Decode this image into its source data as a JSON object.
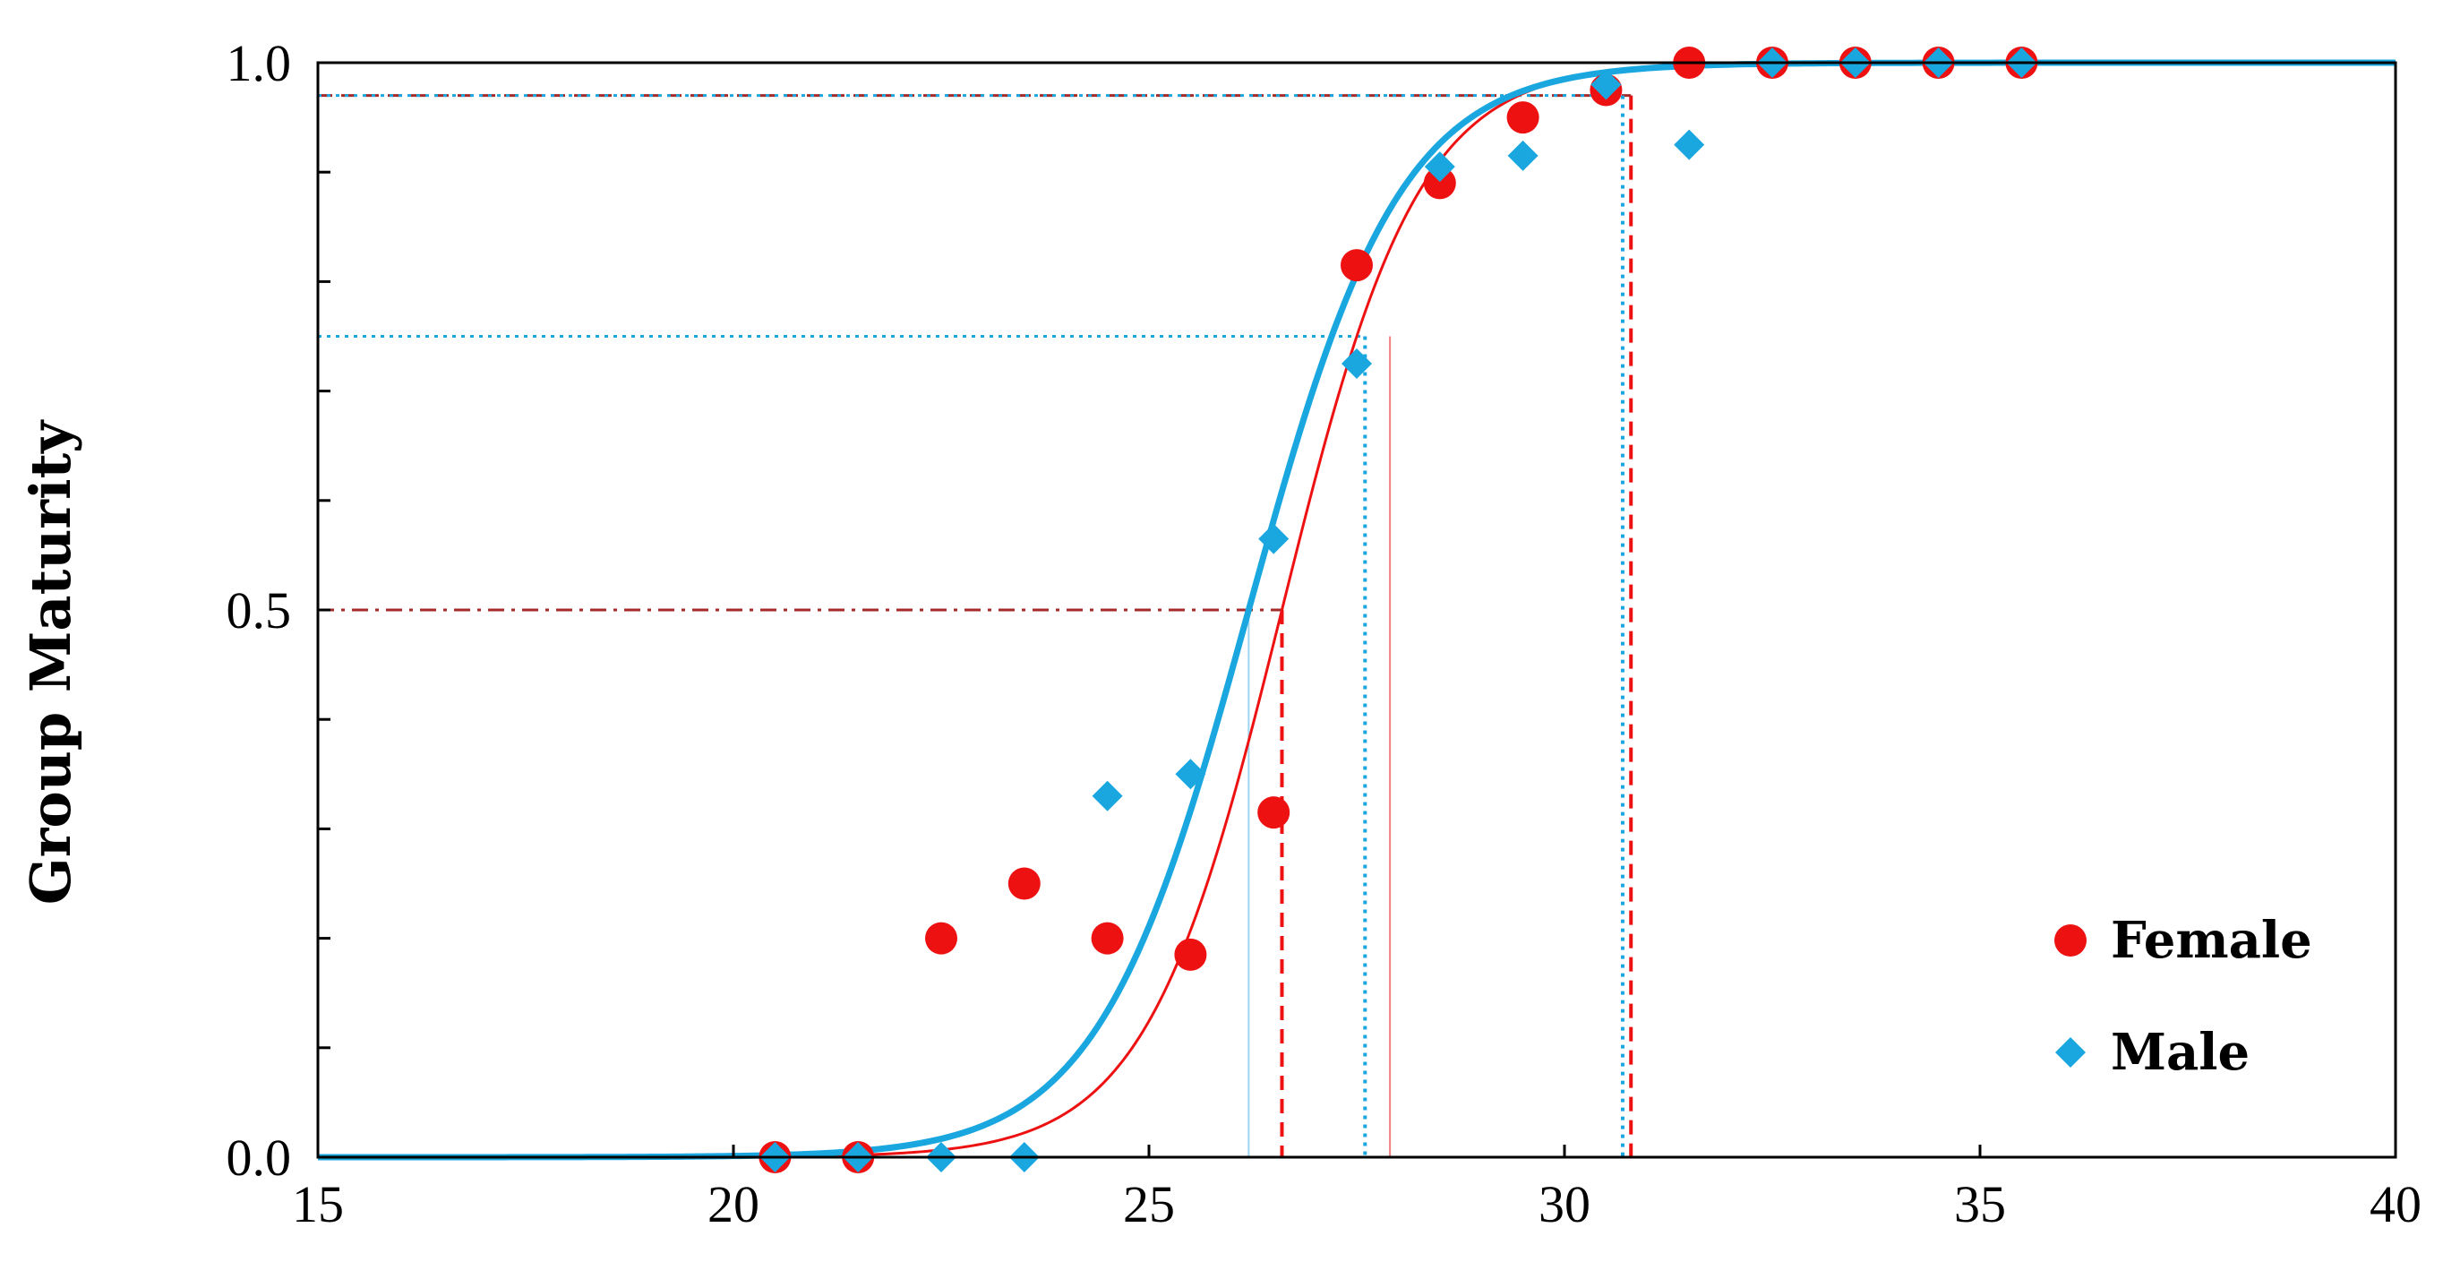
{
  "colors": {
    "female": "#ee1111",
    "female_dark": "#a52a2a",
    "male": "#1aa7e0",
    "male_light": "#9fd4f0",
    "axis": "#000000"
  },
  "chart_data": {
    "type": "scatter",
    "title": "",
    "xlabel": "",
    "ylabel": "Group Maturity",
    "xlim": [
      15,
      40
    ],
    "ylim": [
      0,
      1
    ],
    "x_ticks": [
      "15",
      "20",
      "25",
      "30",
      "35",
      "40"
    ],
    "y_ticks": [
      "0.0",
      "0.5",
      "1.0"
    ],
    "x_tick_values": [
      15,
      20,
      25,
      30,
      35,
      40
    ],
    "y_tick_values": [
      0,
      0.5,
      1
    ],
    "y_minor_ticks": [
      0.1,
      0.2,
      0.3,
      0.4,
      0.6,
      0.7,
      0.8,
      0.9
    ],
    "grid": false,
    "legend_position": "bottom-right",
    "series": [
      {
        "name": "Female",
        "marker": "circle",
        "color": "#ee1111",
        "points": [
          [
            20.5,
            0.0
          ],
          [
            21.5,
            0.0
          ],
          [
            22.5,
            0.2
          ],
          [
            23.5,
            0.25
          ],
          [
            24.5,
            0.2
          ],
          [
            25.5,
            0.185
          ],
          [
            26.5,
            0.315
          ],
          [
            27.5,
            0.815
          ],
          [
            28.5,
            0.89
          ],
          [
            29.5,
            0.95
          ],
          [
            30.5,
            0.975
          ],
          [
            31.5,
            1.0
          ],
          [
            32.5,
            1.0
          ],
          [
            33.5,
            1.0
          ],
          [
            34.5,
            1.0
          ],
          [
            35.5,
            1.0
          ]
        ],
        "fit": {
          "x50": 26.6,
          "k": 1.22,
          "x_start": 20.5,
          "x_end": 40
        }
      },
      {
        "name": "Male",
        "marker": "diamond",
        "color": "#1aa7e0",
        "points": [
          [
            20.5,
            0.0
          ],
          [
            21.5,
            0.0
          ],
          [
            22.5,
            0.0
          ],
          [
            23.5,
            0.0
          ],
          [
            24.5,
            0.33
          ],
          [
            25.5,
            0.35
          ],
          [
            26.5,
            0.565
          ],
          [
            27.5,
            0.725
          ],
          [
            28.5,
            0.905
          ],
          [
            29.5,
            0.915
          ],
          [
            30.5,
            0.98
          ],
          [
            31.5,
            0.925
          ],
          [
            32.5,
            1.0
          ],
          [
            33.5,
            1.0
          ],
          [
            34.5,
            1.0
          ],
          [
            35.5,
            1.0
          ]
        ],
        "fit": {
          "x50": 26.2,
          "k": 1.1,
          "x_start": 15,
          "x_end": 40
        }
      }
    ],
    "reference_lines": [
      {
        "series": "Female",
        "p": 0.5,
        "x": 26.6,
        "style": "dash",
        "hstyle": "dashdot"
      },
      {
        "series": "Female",
        "p": 0.75,
        "x": 27.9,
        "style": "thin"
      },
      {
        "series": "Female",
        "p": 0.97,
        "x": 30.8,
        "style": "dash",
        "hstyle": "dash"
      },
      {
        "series": "Male",
        "p": 0.5,
        "x": 26.2,
        "style": "thin"
      },
      {
        "series": "Male",
        "p": 0.75,
        "x": 27.6,
        "style": "dot",
        "hstyle": "dot"
      },
      {
        "series": "Male",
        "p": 0.97,
        "x": 30.7,
        "style": "dot",
        "hstyle": "dot"
      }
    ]
  }
}
